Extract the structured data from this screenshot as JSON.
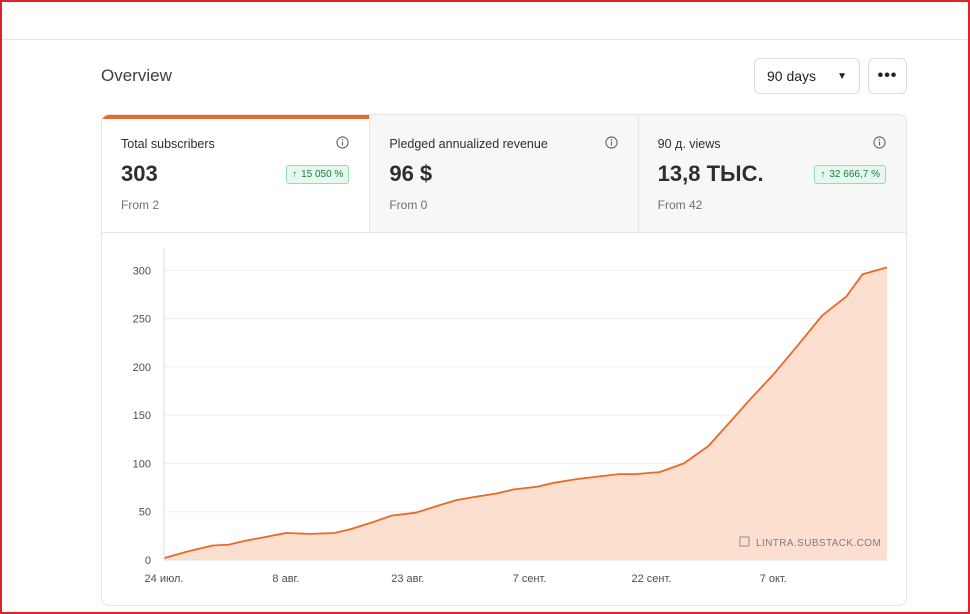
{
  "header": {
    "title": "Overview"
  },
  "range_select": {
    "value": "90 days"
  },
  "more_button": {
    "label": "•••"
  },
  "cards": [
    {
      "label": "Total subscribers",
      "value": "303",
      "badge": "15 050 %",
      "from": "From 2"
    },
    {
      "label": "Pledged annualized revenue",
      "value": "96 $",
      "from": "From 0"
    },
    {
      "label": "90 д. views",
      "value": "13,8 ТЫС.",
      "badge": "32 666,7 %",
      "from": "From 42"
    }
  ],
  "colors": {
    "accent": "#e8692a",
    "fill": "#fcd9c5",
    "badge_green": "#16804a"
  },
  "chart_data": {
    "type": "area",
    "x": [
      0,
      3,
      6,
      8,
      10,
      12,
      15,
      18,
      21,
      23,
      26,
      28,
      31,
      34,
      36,
      38,
      41,
      43,
      46,
      48,
      51,
      53,
      56,
      58,
      61,
      64,
      67,
      70,
      72,
      75,
      78,
      81,
      84,
      86,
      89
    ],
    "x_ticks": [
      {
        "pos": 0,
        "label": "24 июл."
      },
      {
        "pos": 15,
        "label": "8 авг."
      },
      {
        "pos": 30,
        "label": "23 авг."
      },
      {
        "pos": 45,
        "label": "7 сент."
      },
      {
        "pos": 60,
        "label": "22 сент."
      },
      {
        "pos": 75,
        "label": "7 окт."
      }
    ],
    "y": [
      2,
      9,
      15,
      16,
      20,
      23,
      28,
      27,
      28,
      32,
      40,
      46,
      49,
      57,
      62,
      65,
      69,
      73,
      76,
      80,
      84,
      86,
      89,
      89,
      91,
      100,
      118,
      146,
      165,
      192,
      222,
      253,
      273,
      296,
      303
    ],
    "ylim": [
      0,
      320
    ],
    "y_ticks": [
      0,
      50,
      100,
      150,
      200,
      250,
      300
    ],
    "grid": true,
    "watermark": "LINTRA.SUBSTACK.COM"
  }
}
